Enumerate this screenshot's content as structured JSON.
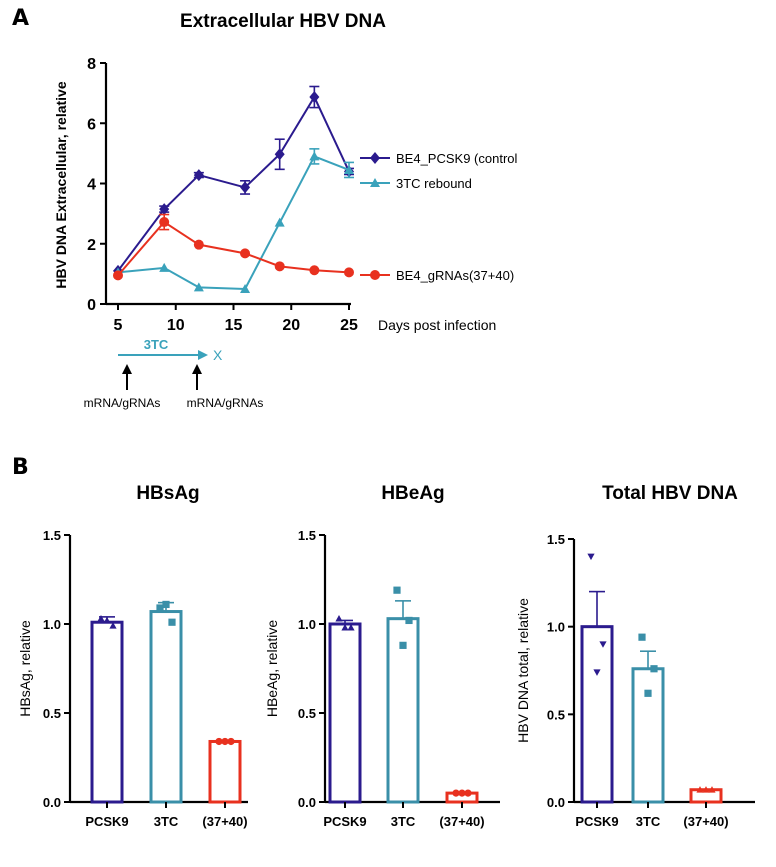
{
  "panel_a": {
    "letter": "A"
  },
  "panel_b": {
    "letter": "B"
  },
  "treatment": {
    "drug_label": "3TC",
    "stop_label": "X",
    "arrow_labels": [
      "mRNA/gRNAs",
      "mRNA/gRNAs"
    ]
  },
  "colors": {
    "navy": "#2b1b8e",
    "teal": "#3aa2bb",
    "red": "#e8311f",
    "bar_teal": "#3a8fa8"
  },
  "chart_data": [
    {
      "type": "line",
      "title": "Extracellular HBV DNA",
      "xlabel": "Days post infection",
      "ylabel": "HBV DNA Extracellular, relative",
      "xlim": [
        5,
        25
      ],
      "ylim": [
        0,
        8
      ],
      "xticks": [
        "5",
        "10",
        "15",
        "20",
        "25"
      ],
      "yticks": [
        "0",
        "2",
        "4",
        "6",
        "8"
      ],
      "legend": "right",
      "series": [
        {
          "name": "BE4_PCSK9 (control",
          "color": "#2b1b8e",
          "marker": "diamond",
          "x": [
            5,
            9,
            12,
            16,
            19,
            22,
            25
          ],
          "y": [
            1.1,
            3.15,
            4.28,
            3.87,
            4.97,
            6.87,
            4.4
          ],
          "err": [
            0.05,
            0.1,
            0.08,
            0.22,
            0.5,
            0.35,
            0.1
          ]
        },
        {
          "name": "3TC rebound",
          "color": "#3aa2bb",
          "marker": "triangle",
          "x": [
            5,
            9,
            12,
            16,
            19,
            22,
            25
          ],
          "y": [
            1.05,
            1.2,
            0.55,
            0.5,
            2.7,
            4.9,
            4.45
          ],
          "err": [
            0.05,
            0.05,
            0.05,
            0.05,
            0.05,
            0.25,
            0.25
          ]
        },
        {
          "name": "BE4_gRNAs(37+40)",
          "color": "#e8311f",
          "marker": "circle",
          "x": [
            5,
            9,
            12,
            16,
            19,
            22,
            25
          ],
          "y": [
            0.95,
            2.72,
            1.97,
            1.68,
            1.25,
            1.12,
            1.05
          ],
          "err": [
            0.05,
            0.25,
            0.05,
            0.05,
            0.05,
            0.05,
            0.05
          ]
        }
      ]
    },
    {
      "type": "bar",
      "title": "HBsAg",
      "ylabel": "HBsAg, relative",
      "ylim": [
        0,
        1.5
      ],
      "yticks": [
        "0.0",
        "0.5",
        "1.0",
        "1.5"
      ],
      "categories": [
        "PCSK9",
        "3TC",
        "(37+40)"
      ],
      "values": [
        1.01,
        1.07,
        0.34
      ],
      "err": [
        0.03,
        0.05,
        0.01
      ],
      "points": [
        [
          1.03,
          0.99,
          1.02
        ],
        [
          1.09,
          1.01,
          1.11
        ],
        [
          0.34,
          0.34,
          0.34
        ]
      ],
      "markers": [
        "triangle",
        "square",
        "circle"
      ],
      "colors": [
        "#2b1b8e",
        "#3a8fa8",
        "#e8311f"
      ]
    },
    {
      "type": "bar",
      "title": "HBeAg",
      "ylabel": "HBeAg, relative",
      "ylim": [
        0,
        1.5
      ],
      "yticks": [
        "0.0",
        "0.5",
        "1.0",
        "1.5"
      ],
      "categories": [
        "PCSK9",
        "3TC",
        "(37+40)"
      ],
      "values": [
        1.0,
        1.03,
        0.05
      ],
      "err": [
        0.02,
        0.1,
        0.01
      ],
      "points": [
        [
          1.03,
          0.98,
          0.98
        ],
        [
          1.19,
          1.02,
          0.88
        ],
        [
          0.05,
          0.05,
          0.05
        ]
      ],
      "markers": [
        "triangle",
        "square",
        "circle"
      ],
      "colors": [
        "#2b1b8e",
        "#3a8fa8",
        "#e8311f"
      ]
    },
    {
      "type": "bar",
      "title": "Total HBV DNA",
      "ylabel": "HBV  DNA total, relative",
      "ylim": [
        0,
        1.5
      ],
      "yticks": [
        "0.0",
        "0.5",
        "1.0",
        "1.5"
      ],
      "categories": [
        "PCSK9",
        "3TC",
        "(37+40)"
      ],
      "values": [
        1.0,
        0.76,
        0.07
      ],
      "err": [
        0.2,
        0.1,
        0.01
      ],
      "points": [
        [
          1.4,
          0.9,
          0.74
        ],
        [
          0.94,
          0.76,
          0.62
        ],
        [
          0.07,
          0.07,
          0.07
        ]
      ],
      "markers": [
        "invtriangle",
        "square",
        "triangle"
      ],
      "colors": [
        "#2b1b8e",
        "#3a8fa8",
        "#e8311f"
      ]
    }
  ]
}
